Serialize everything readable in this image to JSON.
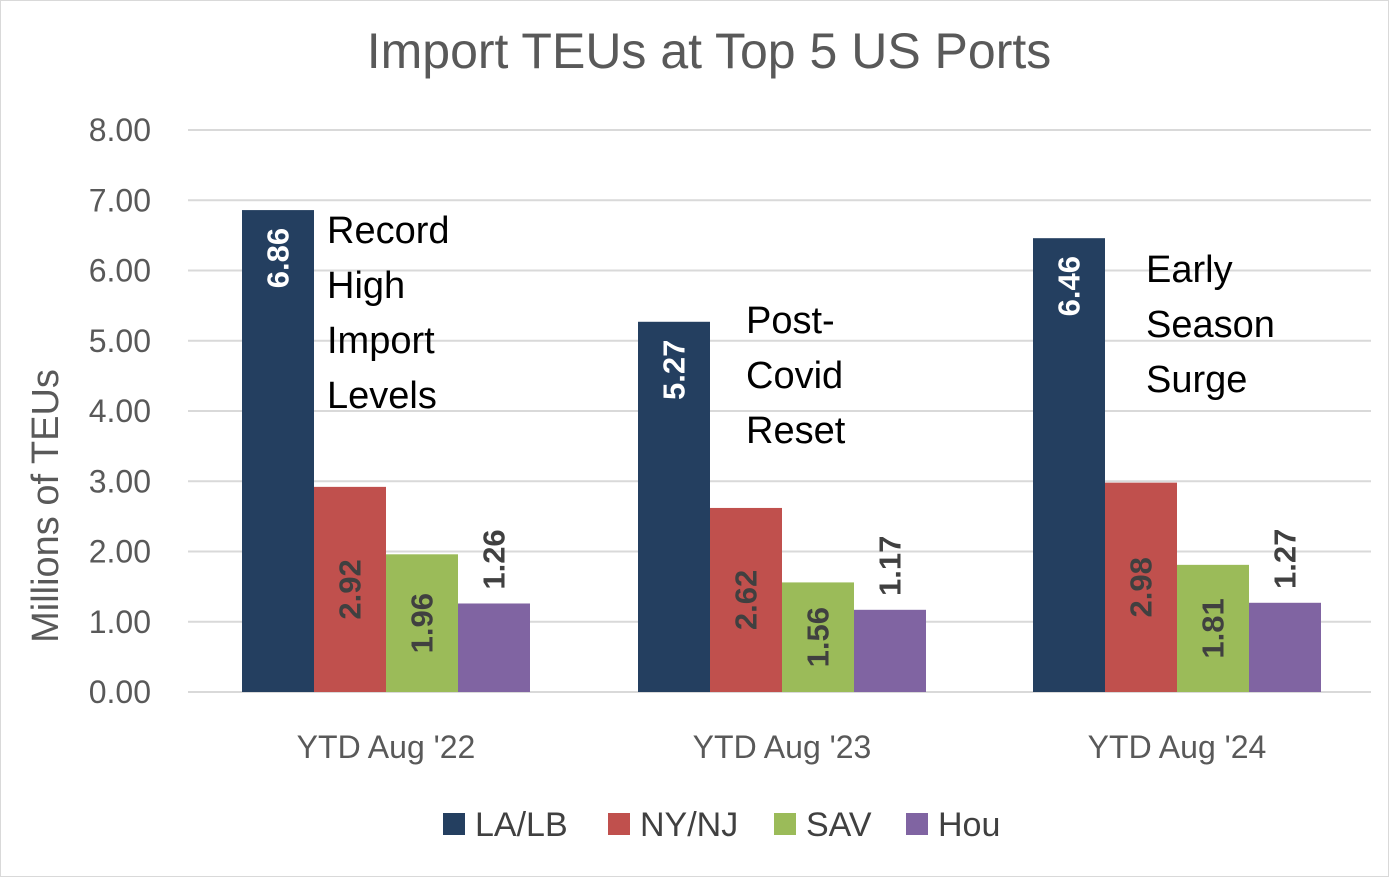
{
  "chart_data": {
    "type": "bar",
    "title": "Import TEUs at Top 5 US Ports",
    "xlabel": "",
    "ylabel": "Millions of TEUs",
    "ylim": [
      0,
      8
    ],
    "yticks": [
      "0.00",
      "1.00",
      "2.00",
      "3.00",
      "4.00",
      "5.00",
      "6.00",
      "7.00",
      "8.00"
    ],
    "grid": true,
    "legend_position": "bottom",
    "categories": [
      "YTD Aug '22",
      "YTD Aug '23",
      "YTD Aug '24"
    ],
    "series": [
      {
        "name": "LA/LB",
        "color": "#243f60",
        "values": [
          6.86,
          5.27,
          6.46
        ],
        "labels": [
          "6.86",
          "5.27",
          "6.46"
        ],
        "label_color": "#ffffff"
      },
      {
        "name": "NY/NJ",
        "color": "#c0504d",
        "values": [
          2.92,
          2.62,
          2.98
        ],
        "labels": [
          "2.92",
          "2.62",
          "2.98"
        ],
        "label_color": "#404040"
      },
      {
        "name": "SAV",
        "color": "#9bbb59",
        "values": [
          1.96,
          1.56,
          1.81
        ],
        "labels": [
          "1.96",
          "1.56",
          "1.81"
        ],
        "label_color": "#404040"
      },
      {
        "name": "Hou",
        "color": "#8064a2",
        "values": [
          1.26,
          1.17,
          1.27
        ],
        "labels": [
          "1.26",
          "1.17",
          "1.27"
        ],
        "label_color": "#404040"
      }
    ],
    "annotations": [
      [
        "Record",
        "High",
        "Import",
        "Levels"
      ],
      [
        "Post-",
        "Covid",
        "Reset"
      ],
      [
        "Early",
        "Season",
        "Surge"
      ]
    ]
  }
}
